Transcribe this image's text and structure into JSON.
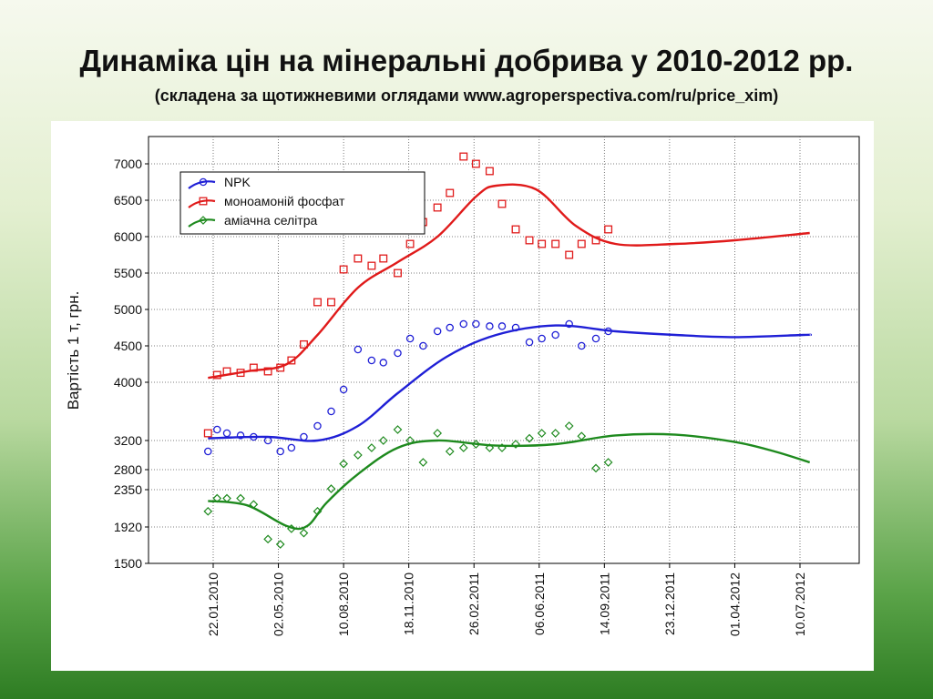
{
  "page": {
    "title": "Динаміка цін на мінеральні добрива у 2010-2012 рр.",
    "subtitle": "(складена за щотижневими оглядами www.agroperspectiva.com/ru/price_xim)"
  },
  "chart_data": {
    "type": "scatter",
    "ylabel": "Вартість 1 т, грн.",
    "xlabel": "",
    "x_tick_labels": [
      "22.01.2010",
      "02.05.2010",
      "10.08.2010",
      "18.11.2010",
      "26.02.2011",
      "06.06.2011",
      "14.09.2011",
      "23.12.2011",
      "01.04.2012",
      "10.07.2012"
    ],
    "y_ticks": [
      1500,
      1920,
      2350,
      2800,
      3200,
      4000,
      4500,
      5000,
      5500,
      6000,
      6500,
      7000
    ],
    "ylim": [
      1500,
      7500
    ],
    "y_scale": "non-uniform (labels as printed)",
    "grid": true,
    "legend_position": "top-left",
    "series": [
      {
        "name": "NPK",
        "color": "#1f1fd6",
        "marker": "circle",
        "points": [
          [
            "14.01.2010",
            3050
          ],
          [
            "28.01.2010",
            3350
          ],
          [
            "12.02.2010",
            3300
          ],
          [
            "05.03.2010",
            3270
          ],
          [
            "25.03.2010",
            3250
          ],
          [
            "16.04.2010",
            3200
          ],
          [
            "05.05.2010",
            3050
          ],
          [
            "22.05.2010",
            3100
          ],
          [
            "10.06.2010",
            3250
          ],
          [
            "01.07.2010",
            3400
          ],
          [
            "22.07.2010",
            3600
          ],
          [
            "10.08.2010",
            3900
          ],
          [
            "01.09.2010",
            4450
          ],
          [
            "22.09.2010",
            4300
          ],
          [
            "10.10.2010",
            4270
          ],
          [
            "01.11.2010",
            4400
          ],
          [
            "20.11.2010",
            4600
          ],
          [
            "10.12.2010",
            4500
          ],
          [
            "01.01.2011",
            4700
          ],
          [
            "20.01.2011",
            4750
          ],
          [
            "10.02.2011",
            4800
          ],
          [
            "01.03.2011",
            4800
          ],
          [
            "22.03.2011",
            4770
          ],
          [
            "10.04.2011",
            4770
          ],
          [
            "01.05.2011",
            4750
          ],
          [
            "22.05.2011",
            4550
          ],
          [
            "10.06.2011",
            4600
          ],
          [
            "01.07.2011",
            4650
          ],
          [
            "22.07.2011",
            4800
          ],
          [
            "10.08.2011",
            4500
          ],
          [
            "01.09.2011",
            4600
          ],
          [
            "20.09.2011",
            4700
          ]
        ],
        "trend": [
          [
            "14.01.2010",
            3230
          ],
          [
            "15.04.2010",
            3250
          ],
          [
            "01.07.2010",
            3200
          ],
          [
            "01.09.2010",
            3400
          ],
          [
            "01.11.2010",
            3850
          ],
          [
            "15.01.2011",
            4350
          ],
          [
            "01.04.2011",
            4650
          ],
          [
            "01.07.2011",
            4780
          ],
          [
            "01.10.2011",
            4700
          ],
          [
            "01.01.2012",
            4650
          ],
          [
            "01.04.2012",
            4620
          ],
          [
            "15.07.2012",
            4650
          ],
          [
            "25.07.2012",
            4650
          ]
        ]
      },
      {
        "name": "моноамоній фосфат",
        "color": "#e01a1a",
        "marker": "square",
        "points": [
          [
            "14.01.2010",
            3300
          ],
          [
            "28.01.2010",
            4100
          ],
          [
            "12.02.2010",
            4150
          ],
          [
            "05.03.2010",
            4130
          ],
          [
            "25.03.2010",
            4200
          ],
          [
            "16.04.2010",
            4150
          ],
          [
            "05.05.2010",
            4200
          ],
          [
            "22.05.2010",
            4300
          ],
          [
            "10.06.2010",
            4520
          ],
          [
            "01.07.2010",
            5100
          ],
          [
            "22.07.2010",
            5100
          ],
          [
            "10.08.2010",
            5550
          ],
          [
            "01.09.2010",
            5700
          ],
          [
            "22.09.2010",
            5600
          ],
          [
            "10.10.2010",
            5700
          ],
          [
            "01.11.2010",
            5500
          ],
          [
            "20.11.2010",
            5900
          ],
          [
            "10.12.2010",
            6200
          ],
          [
            "01.01.2011",
            6400
          ],
          [
            "20.01.2011",
            6600
          ],
          [
            "10.02.2011",
            7100
          ],
          [
            "01.03.2011",
            7000
          ],
          [
            "22.03.2011",
            6900
          ],
          [
            "10.04.2011",
            6450
          ],
          [
            "01.05.2011",
            6100
          ],
          [
            "22.05.2011",
            5950
          ],
          [
            "10.06.2011",
            5900
          ],
          [
            "01.07.2011",
            5900
          ],
          [
            "22.07.2011",
            5750
          ],
          [
            "10.08.2011",
            5900
          ],
          [
            "01.09.2011",
            5950
          ],
          [
            "20.09.2011",
            6100
          ]
        ],
        "trend": [
          [
            "14.01.2010",
            4060
          ],
          [
            "15.03.2010",
            4150
          ],
          [
            "15.05.2010",
            4250
          ],
          [
            "01.07.2010",
            4650
          ],
          [
            "01.09.2010",
            5300
          ],
          [
            "01.11.2010",
            5650
          ],
          [
            "01.01.2011",
            6000
          ],
          [
            "01.03.2011",
            6550
          ],
          [
            "01.04.2011",
            6700
          ],
          [
            "01.06.2011",
            6650
          ],
          [
            "01.08.2011",
            6150
          ],
          [
            "01.10.2011",
            5900
          ],
          [
            "01.01.2012",
            5900
          ],
          [
            "01.04.2012",
            5950
          ],
          [
            "25.07.2012",
            6050
          ]
        ]
      },
      {
        "name": "аміачна селітра",
        "color": "#1e8a1e",
        "marker": "diamond",
        "points": [
          [
            "14.01.2010",
            2100
          ],
          [
            "28.01.2010",
            2250
          ],
          [
            "12.02.2010",
            2250
          ],
          [
            "05.03.2010",
            2250
          ],
          [
            "25.03.2010",
            2180
          ],
          [
            "16.04.2010",
            1780
          ],
          [
            "05.05.2010",
            1720
          ],
          [
            "22.05.2010",
            1900
          ],
          [
            "10.06.2010",
            1850
          ],
          [
            "01.07.2010",
            2100
          ],
          [
            "22.07.2010",
            2370
          ],
          [
            "10.08.2010",
            2880
          ],
          [
            "01.09.2010",
            3000
          ],
          [
            "22.09.2010",
            3100
          ],
          [
            "10.10.2010",
            3200
          ],
          [
            "01.11.2010",
            3350
          ],
          [
            "20.11.2010",
            3200
          ],
          [
            "10.12.2010",
            2900
          ],
          [
            "01.01.2011",
            3300
          ],
          [
            "20.01.2011",
            3050
          ],
          [
            "10.02.2011",
            3100
          ],
          [
            "01.03.2011",
            3150
          ],
          [
            "22.03.2011",
            3100
          ],
          [
            "10.04.2011",
            3100
          ],
          [
            "01.05.2011",
            3150
          ],
          [
            "22.05.2011",
            3230
          ],
          [
            "10.06.2011",
            3300
          ],
          [
            "01.07.2011",
            3300
          ],
          [
            "22.07.2011",
            3400
          ],
          [
            "10.08.2011",
            3260
          ],
          [
            "01.09.2011",
            2820
          ],
          [
            "20.09.2011",
            2900
          ]
        ],
        "trend": [
          [
            "14.01.2010",
            2220
          ],
          [
            "15.03.2010",
            2170
          ],
          [
            "15.05.2010",
            1930
          ],
          [
            "15.06.2010",
            1930
          ],
          [
            "15.07.2010",
            2200
          ],
          [
            "01.09.2010",
            2700
          ],
          [
            "01.11.2010",
            3100
          ],
          [
            "01.01.2011",
            3200
          ],
          [
            "01.04.2011",
            3130
          ],
          [
            "01.07.2011",
            3150
          ],
          [
            "01.10.2011",
            3270
          ],
          [
            "01.01.2012",
            3280
          ],
          [
            "01.04.2012",
            3180
          ],
          [
            "01.06.2012",
            3050
          ],
          [
            "25.07.2012",
            2900
          ]
        ]
      }
    ]
  }
}
